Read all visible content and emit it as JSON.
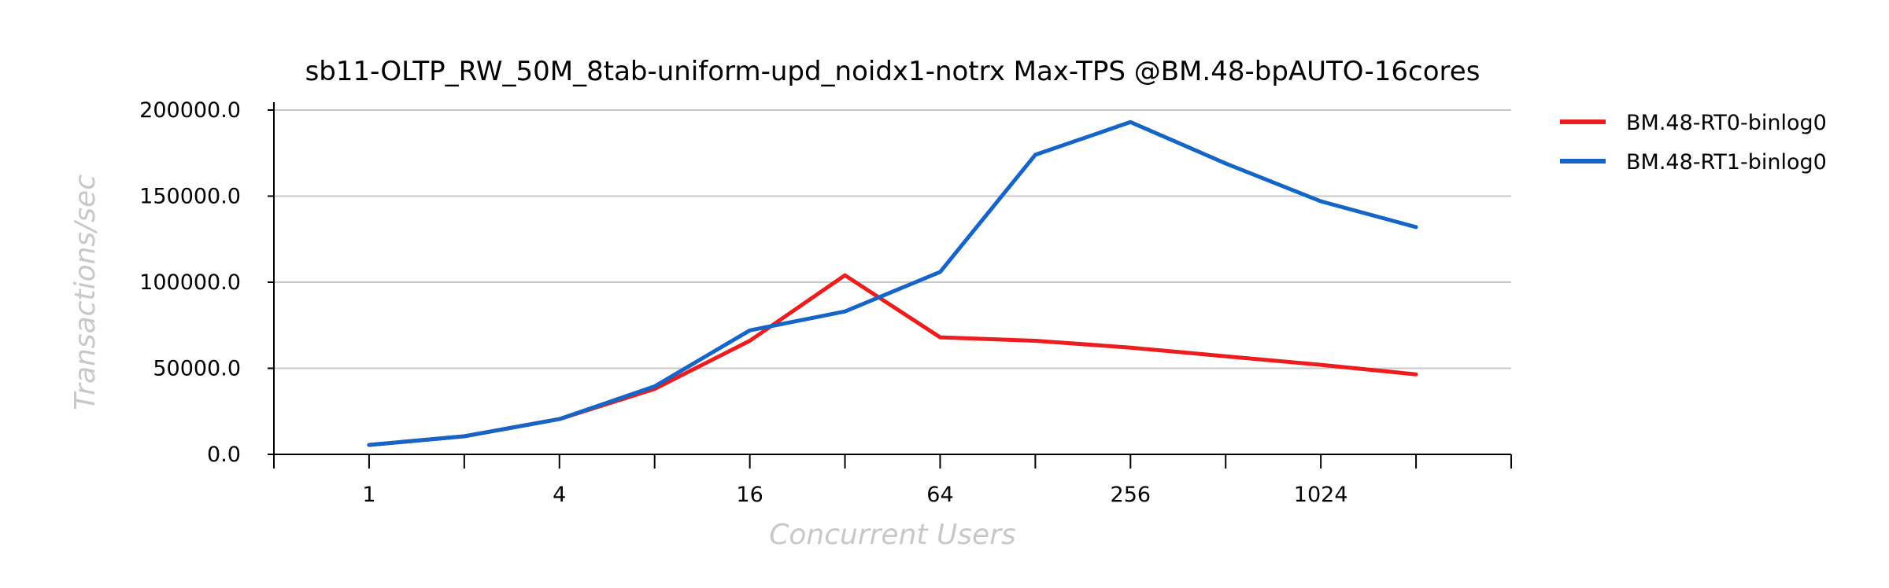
{
  "chart_data": {
    "type": "line",
    "title": "sb11-OLTP_RW_50M_8tab-uniform-upd_noidx1-notrx Max-TPS @BM.48-bpAUTO-16cores",
    "xlabel": "Concurrent Users",
    "ylabel": "Transactions/sec",
    "x_scale": "log2",
    "x": [
      1,
      2,
      4,
      8,
      16,
      32,
      64,
      128,
      256,
      512,
      1024,
      2048
    ],
    "x_tick_labels": [
      "1",
      "4",
      "16",
      "64",
      "256",
      "1024"
    ],
    "x_tick_values": [
      1,
      4,
      16,
      64,
      256,
      1024
    ],
    "xlim": [
      0.5,
      4096
    ],
    "ylim": [
      0,
      200000
    ],
    "y_ticks": [
      "0.0",
      "50000.0",
      "100000.0",
      "150000.0",
      "200000.0"
    ],
    "y_tick_values": [
      0,
      50000,
      100000,
      150000,
      200000
    ],
    "grid": true,
    "legend_position": "right",
    "series": [
      {
        "name": "BM.48-RT0-binlog0",
        "color": "#ee1c1c",
        "values": [
          5500,
          10500,
          20500,
          38000,
          66000,
          104000,
          68000,
          66000,
          62000,
          57000,
          52000,
          46500
        ]
      },
      {
        "name": "BM.48-RT1-binlog0",
        "color": "#1565c8",
        "values": [
          5500,
          10500,
          20500,
          39500,
          72000,
          83000,
          106000,
          174000,
          193000,
          169000,
          147000,
          132000
        ]
      }
    ]
  }
}
